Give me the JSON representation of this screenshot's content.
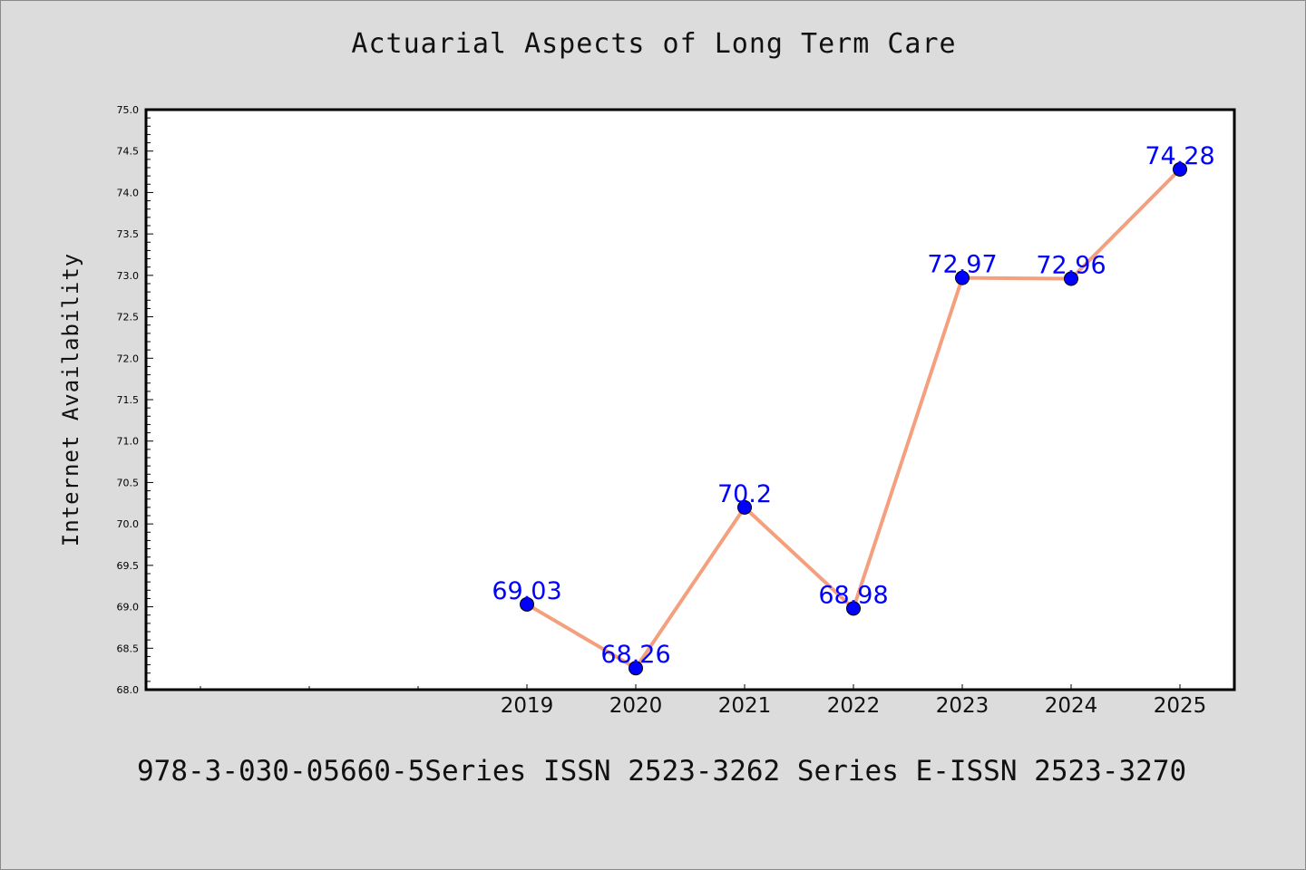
{
  "chart_data": {
    "type": "line",
    "title": "Actuarial Aspects of Long Term Care",
    "xlabel": "",
    "ylabel": "Internet Availability",
    "categories": [
      "2019",
      "2020",
      "2021",
      "2022",
      "2023",
      "2024",
      "2025"
    ],
    "series": [
      {
        "values": [
          69.03,
          68.26,
          70.2,
          68.98,
          72.97,
          72.96,
          74.28
        ],
        "line_color": "#f4a07e",
        "marker_color": "#0000ff"
      }
    ],
    "data_labels": [
      "69.03",
      "68.26",
      "70.2",
      "68.98",
      "72.97",
      "72.96",
      "74.28"
    ],
    "ylim": [
      68.0,
      75.0
    ],
    "y_ticks": [
      "68.0",
      "68.5",
      "69.0",
      "69.5",
      "70.0",
      "70.5",
      "71.0",
      "71.5",
      "72.0",
      "72.5",
      "73.0",
      "73.5",
      "74.0",
      "74.5",
      "75.0"
    ],
    "x_empty_slots_before": 3,
    "grid": false,
    "legend": "none",
    "plot_background": "#ffffff",
    "figure_background": "#dcdcdc"
  },
  "footer": {
    "text": "978-3-030-05660-5Series ISSN 2523-3262 Series E-ISSN 2523-3270"
  }
}
